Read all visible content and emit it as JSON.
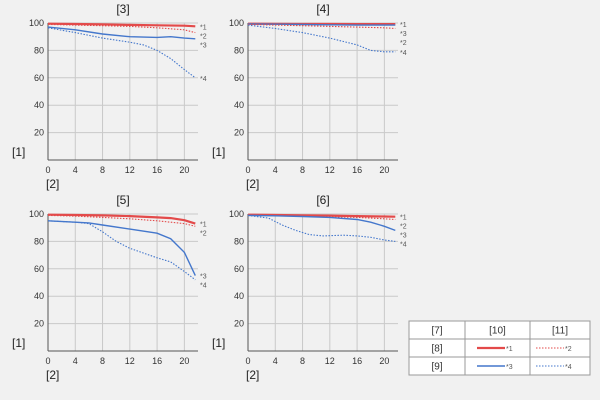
{
  "colors": {
    "background": "#f1f1f1",
    "grid": "#c9c9c9",
    "axis": "#555555",
    "series_1": "#e34a4a",
    "series_2": "#e34a4a",
    "series_3": "#4477cc",
    "series_4": "#4477cc"
  },
  "legend": {
    "header": [
      "[7]",
      "[10]",
      "[11]"
    ],
    "rows": [
      {
        "label": "[8]",
        "solid": "*1",
        "dotted": "*2"
      },
      {
        "label": "[9]",
        "solid": "*3",
        "dotted": "*4"
      }
    ]
  },
  "chart_data": [
    {
      "type": "line",
      "title": "[3]",
      "ylabel": "[1]",
      "xlabel": "[2]",
      "xlim": [
        0,
        22
      ],
      "ylim": [
        0,
        100
      ],
      "x_ticks": [
        "0",
        "4",
        "8",
        "12",
        "16",
        "20"
      ],
      "y_ticks": [
        "20",
        "40",
        "60",
        "80",
        "100"
      ],
      "series": [
        {
          "name": "*1",
          "style": "solid",
          "x": [
            0,
            4,
            8,
            12,
            16,
            20,
            21.6
          ],
          "y": [
            99.5,
            99.3,
            99,
            98.6,
            98.3,
            98,
            97.6
          ]
        },
        {
          "name": "*2",
          "style": "dotted",
          "x": [
            0,
            4,
            8,
            12,
            16,
            20,
            21.6
          ],
          "y": [
            99,
            98.5,
            98,
            97.5,
            96.5,
            95,
            93
          ]
        },
        {
          "name": "*3",
          "style": "solid",
          "x": [
            0,
            4,
            8,
            12,
            16,
            18,
            20,
            21.6
          ],
          "y": [
            97,
            95,
            92,
            90,
            89.5,
            90,
            89,
            88.5
          ]
        },
        {
          "name": "*4",
          "style": "dotted",
          "x": [
            0,
            4,
            8,
            12,
            14,
            16,
            18,
            20,
            21.6
          ],
          "y": [
            96.5,
            93,
            89,
            86,
            84,
            80,
            74,
            66,
            60
          ]
        }
      ]
    },
    {
      "type": "line",
      "title": "[4]",
      "ylabel": "[1]",
      "xlabel": "[2]",
      "xlim": [
        0,
        22
      ],
      "ylim": [
        0,
        100
      ],
      "x_ticks": [
        "0",
        "4",
        "8",
        "12",
        "16",
        "20"
      ],
      "y_ticks": [
        "20",
        "40",
        "60",
        "80",
        "100"
      ],
      "series": [
        {
          "name": "*1",
          "style": "solid",
          "x": [
            0,
            4,
            8,
            12,
            16,
            20,
            21.6
          ],
          "y": [
            99.5,
            99.4,
            99.3,
            99.3,
            99.2,
            99.2,
            99.2
          ]
        },
        {
          "name": "*3",
          "style": "solid",
          "x": [
            0,
            4,
            8,
            12,
            16,
            20,
            21.6
          ],
          "y": [
            99.3,
            99.1,
            98.9,
            98.7,
            98.5,
            98.5,
            98.5
          ]
        },
        {
          "name": "*2",
          "style": "dotted",
          "x": [
            0,
            4,
            8,
            12,
            16,
            20,
            21.6
          ],
          "y": [
            99,
            98.5,
            98,
            97.5,
            97,
            96.5,
            96
          ]
        },
        {
          "name": "*4",
          "style": "dotted",
          "x": [
            0,
            4,
            8,
            12,
            16,
            18,
            20,
            21.6
          ],
          "y": [
            98.5,
            96,
            93,
            89,
            84,
            80,
            79,
            79
          ]
        }
      ]
    },
    {
      "type": "line",
      "title": "[5]",
      "ylabel": "[1]",
      "xlabel": "[2]",
      "xlim": [
        0,
        22
      ],
      "ylim": [
        0,
        100
      ],
      "x_ticks": [
        "0",
        "4",
        "8",
        "12",
        "16",
        "20"
      ],
      "y_ticks": [
        "20",
        "40",
        "60",
        "80",
        "100"
      ],
      "series": [
        {
          "name": "*1",
          "style": "solid",
          "x": [
            0,
            4,
            8,
            12,
            16,
            18,
            20,
            21.6
          ],
          "y": [
            99.5,
            99.3,
            99,
            98.5,
            97.5,
            97,
            95.5,
            93
          ]
        },
        {
          "name": "*2",
          "style": "dotted",
          "x": [
            0,
            4,
            8,
            12,
            16,
            20,
            21.6
          ],
          "y": [
            99,
            98.5,
            97.5,
            96.5,
            95,
            93,
            91
          ]
        },
        {
          "name": "*3",
          "style": "solid",
          "x": [
            0,
            4,
            6,
            8,
            12,
            16,
            18,
            20,
            21.6
          ],
          "y": [
            95,
            94,
            93.5,
            92,
            89,
            86,
            82,
            72,
            55
          ]
        },
        {
          "name": "*4",
          "style": "dotted",
          "x": [
            0,
            4,
            6,
            8,
            10,
            12,
            16,
            18,
            20,
            21.6
          ],
          "y": [
            95,
            94,
            93,
            87,
            80,
            75,
            68,
            65,
            58,
            52
          ]
        }
      ]
    },
    {
      "type": "line",
      "title": "[6]",
      "ylabel": "[1]",
      "xlabel": "[2]",
      "xlim": [
        0,
        22
      ],
      "ylim": [
        0,
        100
      ],
      "x_ticks": [
        "0",
        "4",
        "8",
        "12",
        "16",
        "20"
      ],
      "y_ticks": [
        "20",
        "40",
        "60",
        "80",
        "100"
      ],
      "series": [
        {
          "name": "*1",
          "style": "solid",
          "x": [
            0,
            4,
            8,
            12,
            16,
            20,
            21.6
          ],
          "y": [
            99.5,
            99.3,
            99,
            98.8,
            98.5,
            98.2,
            98
          ]
        },
        {
          "name": "*2",
          "style": "dotted",
          "x": [
            0,
            4,
            8,
            12,
            16,
            20,
            21.6
          ],
          "y": [
            99.2,
            99,
            98.5,
            98,
            97.5,
            96.5,
            96
          ]
        },
        {
          "name": "*3",
          "style": "solid",
          "x": [
            0,
            4,
            8,
            12,
            16,
            18,
            20,
            21.6
          ],
          "y": [
            99,
            98.7,
            98.2,
            97.5,
            96,
            94,
            91,
            88
          ]
        },
        {
          "name": "*4",
          "style": "dotted",
          "x": [
            0,
            3,
            5,
            7,
            9,
            11,
            14,
            16,
            18,
            20,
            21.6
          ],
          "y": [
            99,
            97,
            92,
            88,
            85,
            84,
            84.5,
            84,
            83,
            81,
            80
          ]
        }
      ]
    }
  ]
}
